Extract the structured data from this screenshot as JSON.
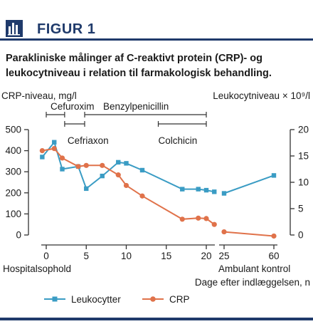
{
  "figure": {
    "label": "FIGUR 1"
  },
  "caption": "Parakliniske målinger af C-reaktivt protein (CRP)- og leukocytniveau i relation til farmakologisk behandling.",
  "colors": {
    "brand": "#1f3a6b",
    "leukocytter": "#3a9cc4",
    "crp": "#e0724a"
  },
  "chart_data": {
    "type": "line",
    "ylabel_left": "CRP-niveau, mg/l",
    "ylabel_right": "Leukocytniveau × 10⁹/l",
    "xlabel": "Dage efter indlæggelsen, n",
    "ylim_left": [
      0,
      500
    ],
    "ylim_right": [
      0,
      20
    ],
    "yticks_left": [
      0,
      100,
      200,
      300,
      400,
      500
    ],
    "yticks_right": [
      0,
      5,
      10,
      15,
      20
    ],
    "segments": [
      {
        "label": "Hospitalsophold",
        "xlim": [
          0,
          20
        ],
        "xticks": [
          0,
          5,
          10,
          15,
          20
        ]
      },
      {
        "label": "Ambulant kontrol",
        "xlim": [
          25,
          60
        ],
        "xticks": [
          25,
          60
        ]
      }
    ],
    "series": [
      {
        "name": "Leukocytter",
        "axis": "right",
        "color": "#3a9cc4",
        "marker": "square",
        "segments": [
          [
            [
              -0.5,
              14.8
            ],
            [
              1,
              17.6
            ],
            [
              2,
              12.5
            ],
            [
              4,
              13.0
            ],
            [
              5,
              8.8
            ],
            [
              7,
              11.2
            ],
            [
              9,
              13.8
            ],
            [
              10,
              13.6
            ],
            [
              12,
              12.3
            ],
            [
              17,
              8.7
            ],
            [
              19,
              8.7
            ],
            [
              20,
              8.5
            ],
            [
              21,
              8.2
            ]
          ],
          [
            [
              25,
              7.9
            ],
            [
              60,
              11.3
            ]
          ]
        ]
      },
      {
        "name": "CRP",
        "axis": "left",
        "color": "#e0724a",
        "marker": "circle",
        "segments": [
          [
            [
              -0.5,
              400
            ],
            [
              1,
              410
            ],
            [
              2,
              365
            ],
            [
              4,
              325
            ],
            [
              5,
              330
            ],
            [
              7,
              330
            ],
            [
              9,
              285
            ],
            [
              10,
              235
            ],
            [
              12,
              185
            ],
            [
              17,
              75
            ],
            [
              19,
              80
            ],
            [
              20,
              78
            ],
            [
              21,
              50
            ]
          ],
          [
            [
              25,
              15
            ],
            [
              60,
              -5
            ]
          ]
        ]
      }
    ],
    "treatments": [
      {
        "label": "Cefuroxim",
        "start": 0,
        "end": 2.3
      },
      {
        "label": "Cefriaxon",
        "start": 2.3,
        "end": 4.8
      },
      {
        "label": "Benzylpenicillin",
        "start": 4.8,
        "end": 20
      },
      {
        "label": "Colchicin",
        "start": 14,
        "end": 20
      }
    ],
    "legend": {
      "placement": "bottom",
      "entries": [
        "Leukocytter",
        "CRP"
      ]
    }
  }
}
